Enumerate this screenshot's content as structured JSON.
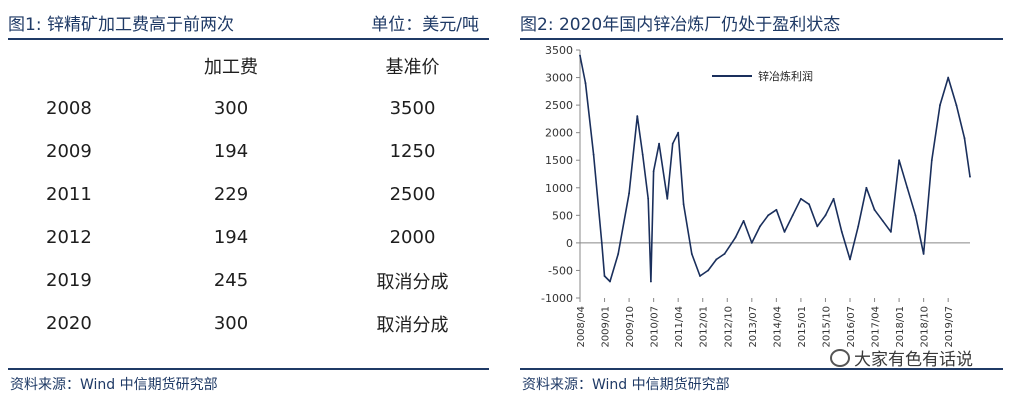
{
  "left": {
    "title": "图1: 锌精矿加工费高于前两次",
    "unit": "单位：美元/吨",
    "table": {
      "headers": [
        "",
        "加工费",
        "基准价"
      ],
      "rows": [
        [
          "2008",
          "300",
          "3500"
        ],
        [
          "2009",
          "194",
          "1250"
        ],
        [
          "2011",
          "229",
          "2500"
        ],
        [
          "2012",
          "194",
          "2000"
        ],
        [
          "2019",
          "245",
          "取消分成"
        ],
        [
          "2020",
          "300",
          "取消分成"
        ]
      ]
    },
    "source": "资料来源：Wind 中信期货研究部"
  },
  "right": {
    "title": "图2: 2020年国内锌冶炼厂仍处于盈利状态",
    "source": "资料来源：Wind  中信期货研究部",
    "watermark": "大家有色有话说"
  },
  "chart_data": {
    "type": "line",
    "title": "图2: 2020年国内锌冶炼厂仍处于盈利状态",
    "series": [
      {
        "name": "锌冶炼利润",
        "color": "#1a2f5c",
        "x": [
          "2008/04",
          "2008/06",
          "2008/09",
          "2008/12",
          "2009/01",
          "2009/03",
          "2009/06",
          "2009/10",
          "2010/01",
          "2010/03",
          "2010/05",
          "2010/06",
          "2010/07",
          "2010/09",
          "2010/12",
          "2011/02",
          "2011/04",
          "2011/06",
          "2011/09",
          "2011/12",
          "2012/03",
          "2012/06",
          "2012/09",
          "2013/01",
          "2013/04",
          "2013/07",
          "2013/10",
          "2014/01",
          "2014/04",
          "2014/07",
          "2014/10",
          "2015/01",
          "2015/04",
          "2015/07",
          "2015/10",
          "2016/01",
          "2016/04",
          "2016/07",
          "2016/10",
          "2017/01",
          "2017/04",
          "2017/07",
          "2017/10",
          "2018/01",
          "2018/04",
          "2018/07",
          "2018/10",
          "2019/01",
          "2019/04",
          "2019/07",
          "2019/10",
          "2020/01",
          "2020/03"
        ],
        "values": [
          3400,
          2900,
          1600,
          0,
          -600,
          -700,
          -200,
          900,
          2300,
          1600,
          800,
          -700,
          1300,
          1800,
          800,
          1800,
          2000,
          700,
          -200,
          -600,
          -500,
          -300,
          -200,
          100,
          400,
          0,
          300,
          500,
          600,
          200,
          500,
          800,
          700,
          300,
          500,
          800,
          200,
          -300,
          300,
          1000,
          600,
          400,
          200,
          1500,
          1000,
          500,
          -200,
          1500,
          2500,
          3000,
          2500,
          1900,
          1200
        ]
      }
    ],
    "x_tick_labels": [
      "2008/04",
      "2009/01",
      "2009/10",
      "2010/07",
      "2011/04",
      "2012/01",
      "2012/10",
      "2013/07",
      "2014/04",
      "2015/01",
      "2015/10",
      "2016/07",
      "2017/04",
      "2018/01",
      "2018/10",
      "2019/07"
    ],
    "y_tick_labels": [
      "-1000",
      "-500",
      "0",
      "500",
      "1000",
      "1500",
      "2000",
      "2500",
      "3000",
      "3500"
    ],
    "ylim": [
      -1000,
      3500
    ],
    "grid": false,
    "legend_position": "top-center"
  }
}
